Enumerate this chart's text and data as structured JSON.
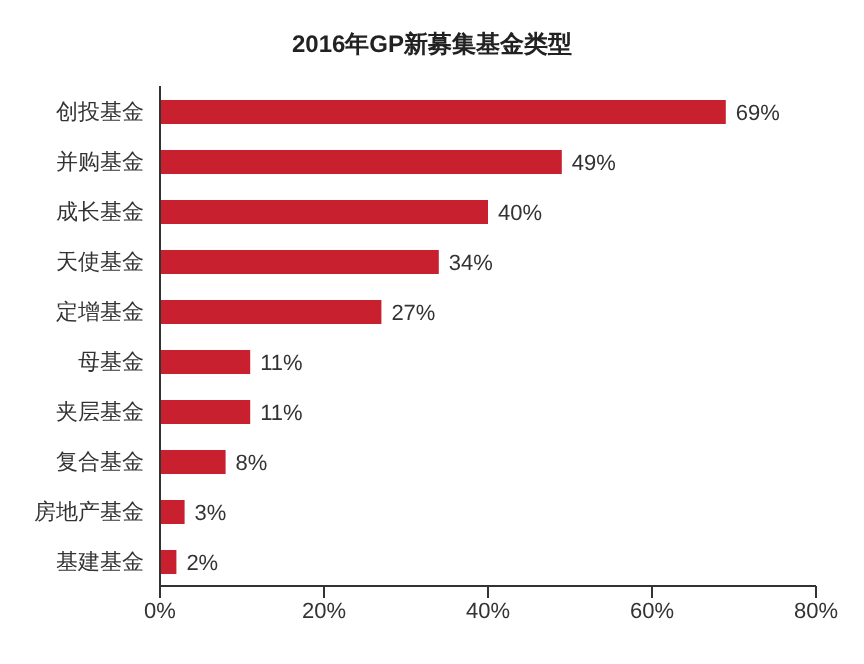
{
  "chart_data": {
    "type": "bar",
    "orientation": "horizontal",
    "title": "2016年GP新募集基金类型",
    "categories": [
      "创投基金",
      "并购基金",
      "成长基金",
      "天使基金",
      "定增基金",
      "母基金",
      "夹层基金",
      "复合基金",
      "房地产基金",
      "基建基金"
    ],
    "values": [
      69,
      49,
      40,
      34,
      27,
      11,
      11,
      8,
      3,
      2
    ],
    "value_labels": [
      "69%",
      "49%",
      "40%",
      "34%",
      "27%",
      "11%",
      "11%",
      "8%",
      "3%",
      "2%"
    ],
    "color": "#c8202f",
    "xlim": [
      0,
      80
    ],
    "xticks": [
      {
        "value": 0,
        "label": "0%"
      },
      {
        "value": 20,
        "label": "20%"
      },
      {
        "value": 40,
        "label": "40%"
      },
      {
        "value": 60,
        "label": "60%"
      },
      {
        "value": 80,
        "label": "80%"
      }
    ],
    "grid": false
  }
}
